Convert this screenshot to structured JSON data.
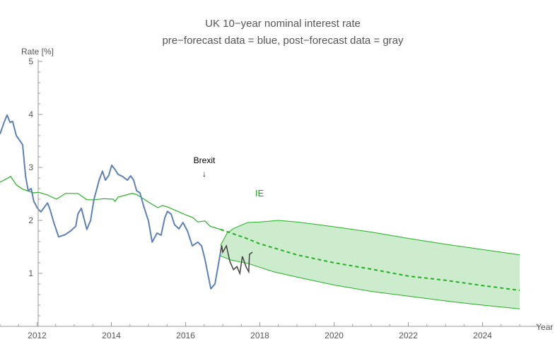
{
  "chart_data": {
    "type": "line",
    "title": "UK 10−year nominal interest rate",
    "subtitle": "pre−forecast data = blue, post−forecast data = gray",
    "xlabel": "Year",
    "ylabel": "Rate [%]",
    "xlim": [
      2011,
      2026.1
    ],
    "ylim": [
      0,
      5
    ],
    "x_ticks": [
      2012,
      2014,
      2016,
      2018,
      2020,
      2022,
      2024
    ],
    "y_ticks": [
      1,
      2,
      3,
      4,
      5
    ],
    "grid": false,
    "colors": {
      "pre": "#5e81b5",
      "post": "#404040",
      "model": "#22b022",
      "band": "#cdeccd"
    },
    "annotations": [
      {
        "text": "Brexit",
        "arrow": "↓",
        "x": 2016.5,
        "y": 3.1
      },
      {
        "text": "IE",
        "x": 2017.95,
        "y": 2.5
      }
    ],
    "series": [
      {
        "role": "pre-forecast",
        "x": [
          2011.0,
          2011.1,
          2011.19,
          2011.27,
          2011.34,
          2011.44,
          2011.61,
          2011.69,
          2011.76,
          2011.84,
          2011.91,
          2012.01,
          2012.1,
          2012.28,
          2012.35,
          2012.45,
          2012.58,
          2012.75,
          2012.9,
          2013.04,
          2013.1,
          2013.19,
          2013.34,
          2013.44,
          2013.53,
          2013.67,
          2013.76,
          2013.84,
          2013.93,
          2014.01,
          2014.1,
          2014.18,
          2014.3,
          2014.43,
          2014.52,
          2014.6,
          2014.68,
          2014.77,
          2014.87,
          2015.0,
          2015.1,
          2015.23,
          2015.34,
          2015.44,
          2015.51,
          2015.61,
          2015.7,
          2015.82,
          2015.93,
          2016.05,
          2016.18,
          2016.33,
          2016.43,
          2016.52,
          2016.68,
          2016.79,
          2016.94
        ],
        "y": [
          3.63,
          3.83,
          3.99,
          3.85,
          3.87,
          3.6,
          3.43,
          2.83,
          2.56,
          2.6,
          2.36,
          2.23,
          2.16,
          2.33,
          2.2,
          1.96,
          1.69,
          1.73,
          1.8,
          1.89,
          2.12,
          2.23,
          1.83,
          2.0,
          2.39,
          2.76,
          2.93,
          2.76,
          2.85,
          3.04,
          2.96,
          2.87,
          2.83,
          2.76,
          2.84,
          2.76,
          2.56,
          2.52,
          2.27,
          1.99,
          1.59,
          1.76,
          1.72,
          2.05,
          2.17,
          2.12,
          1.92,
          1.84,
          1.96,
          1.8,
          1.52,
          1.59,
          1.52,
          1.27,
          0.71,
          0.8,
          1.4
        ]
      },
      {
        "role": "post-forecast",
        "x": [
          2016.94,
          2016.97,
          2017.0,
          2017.1,
          2017.19,
          2017.29,
          2017.38,
          2017.46,
          2017.53,
          2017.63,
          2017.7,
          2017.72,
          2017.8
        ],
        "y": [
          1.4,
          1.53,
          1.4,
          1.52,
          1.23,
          1.07,
          1.13,
          1.0,
          1.32,
          1.12,
          1.03,
          1.36,
          1.4
        ]
      },
      {
        "role": "model-history",
        "x": [
          2011.0,
          2011.29,
          2011.44,
          2011.61,
          2011.9,
          2012.05,
          2012.28,
          2012.52,
          2012.77,
          2013.1,
          2013.34,
          2013.53,
          2013.8,
          2014.05,
          2014.1,
          2014.18,
          2014.56,
          2014.68,
          2015.06,
          2015.25,
          2015.38,
          2015.53,
          2015.95,
          2016.2,
          2016.33,
          2016.52,
          2016.66,
          2016.94
        ],
        "y": [
          2.72,
          2.83,
          2.67,
          2.59,
          2.52,
          2.53,
          2.48,
          2.4,
          2.51,
          2.51,
          2.39,
          2.39,
          2.41,
          2.4,
          2.36,
          2.44,
          2.51,
          2.49,
          2.32,
          2.24,
          2.28,
          2.25,
          2.12,
          2.05,
          1.97,
          1.99,
          1.89,
          1.83
        ]
      },
      {
        "role": "model-forecast",
        "x": [
          2016.94,
          2017.23,
          2017.61,
          2017.99,
          2018.62,
          2019,
          2020,
          2021,
          2022,
          2023,
          2024,
          2025
        ],
        "y": [
          1.83,
          1.76,
          1.67,
          1.56,
          1.43,
          1.35,
          1.2,
          1.08,
          0.95,
          0.87,
          0.77,
          0.68
        ]
      },
      {
        "role": "band-upper",
        "x": [
          2016.94,
          2017.12,
          2017.3,
          2017.67,
          2018,
          2018.5,
          2019,
          2020,
          2021,
          2022,
          2023,
          2024,
          2025
        ],
        "y": [
          1.53,
          1.76,
          1.85,
          1.96,
          1.97,
          2.0,
          1.97,
          1.88,
          1.78,
          1.66,
          1.55,
          1.45,
          1.35
        ]
      },
      {
        "role": "band-lower",
        "x": [
          2016.94,
          2017.23,
          2017.67,
          2018.37,
          2019,
          2020,
          2021,
          2022,
          2023,
          2024,
          2025
        ],
        "y": [
          1.33,
          1.25,
          1.19,
          1.03,
          0.93,
          0.78,
          0.66,
          0.57,
          0.48,
          0.4,
          0.33
        ]
      }
    ]
  }
}
